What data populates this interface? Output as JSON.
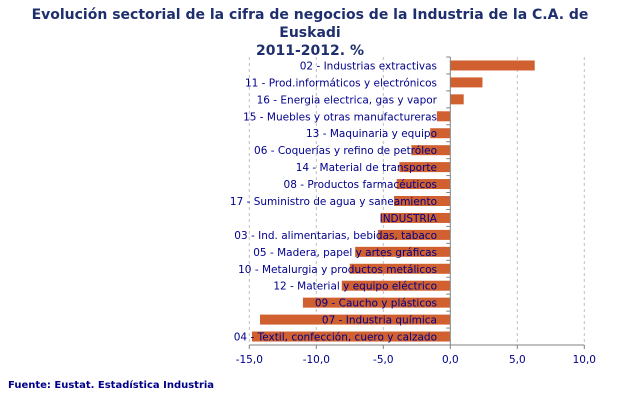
{
  "chart_data": {
    "type": "bar",
    "orientation": "horizontal",
    "title": "Evolución sectorial de la cifra de negocios de la Industria de la C.A. de Euskadi",
    "subtitle": "2011-2012. %",
    "categories": [
      "02 - Industrias extractivas",
      "11 - Prod.informáticos y electrónicos",
      "16 - Energia electrica, gas y vapor",
      "15 - Muebles y otras manufactureras",
      "13 - Maquinaria y equipo",
      "06 - Coquerías y refino de petróleo",
      "14 - Material de transporte",
      "08 - Productos farmacéuticos",
      "17 - Suministro de agua y saneamiento",
      "INDUSTRIA",
      "03 - Ind. alimentarias, bebidas, tabaco",
      "05 - Madera, papel y artes gráficas",
      "10 - Metalurgia y productos metálicos",
      "12 - Material y equipo eléctrico",
      "09 - Caucho y plásticos",
      "07 - Industria química",
      "04 - Textil, confección, cuero y calzado"
    ],
    "values": [
      6.3,
      2.4,
      1.0,
      -1.0,
      -1.5,
      -2.9,
      -3.8,
      -4.0,
      -4.2,
      -5.2,
      -5.4,
      -7.1,
      -7.5,
      -8.1,
      -11.0,
      -14.2,
      -14.8
    ],
    "xlim": [
      -15,
      10
    ],
    "xticks": [
      "-15,0",
      "-10,0",
      "-5,0",
      "0,0",
      "5,0",
      "10,0"
    ],
    "grid": true,
    "bar_color": "#d06030"
  },
  "source": "Fuente: Eustat. Estadística Industria"
}
